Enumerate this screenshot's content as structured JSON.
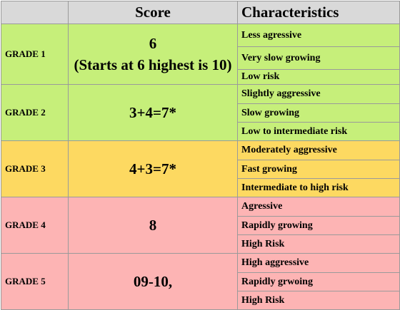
{
  "header": {
    "col1": "",
    "col2": "Score",
    "col3": "Characteristics"
  },
  "grades": [
    {
      "label": "GRADE 1",
      "score_line1": "6",
      "score_line2": "(Starts at 6 highest is 10)",
      "characteristics": [
        "Less agressive",
        "Very slow growing",
        "Low risk"
      ],
      "color": "#c6ef7a"
    },
    {
      "label": "GRADE 2",
      "score_line1": "3+4=7*",
      "score_line2": "",
      "characteristics": [
        "Slightly aggressive",
        "Slow growing",
        "Low to intermediate risk"
      ],
      "color": "#c6ef7a"
    },
    {
      "label": "GRADE 3",
      "score_line1": "4+3=7*",
      "score_line2": "",
      "characteristics": [
        "Moderately aggressive",
        "Fast growing",
        "Intermediate to high risk"
      ],
      "color": "#fdd961"
    },
    {
      "label": "GRADE 4",
      "score_line1": "8",
      "score_line2": "",
      "characteristics": [
        "Agressive",
        "Rapidly growing",
        "High Risk"
      ],
      "color": "#fdb4b4"
    },
    {
      "label": "GRADE 5",
      "score_line1": "09-10,",
      "score_line2": "",
      "characteristics": [
        "High aggressive",
        "Rapidly grwoing",
        "High Risk"
      ],
      "color": "#fdb4b4"
    }
  ]
}
